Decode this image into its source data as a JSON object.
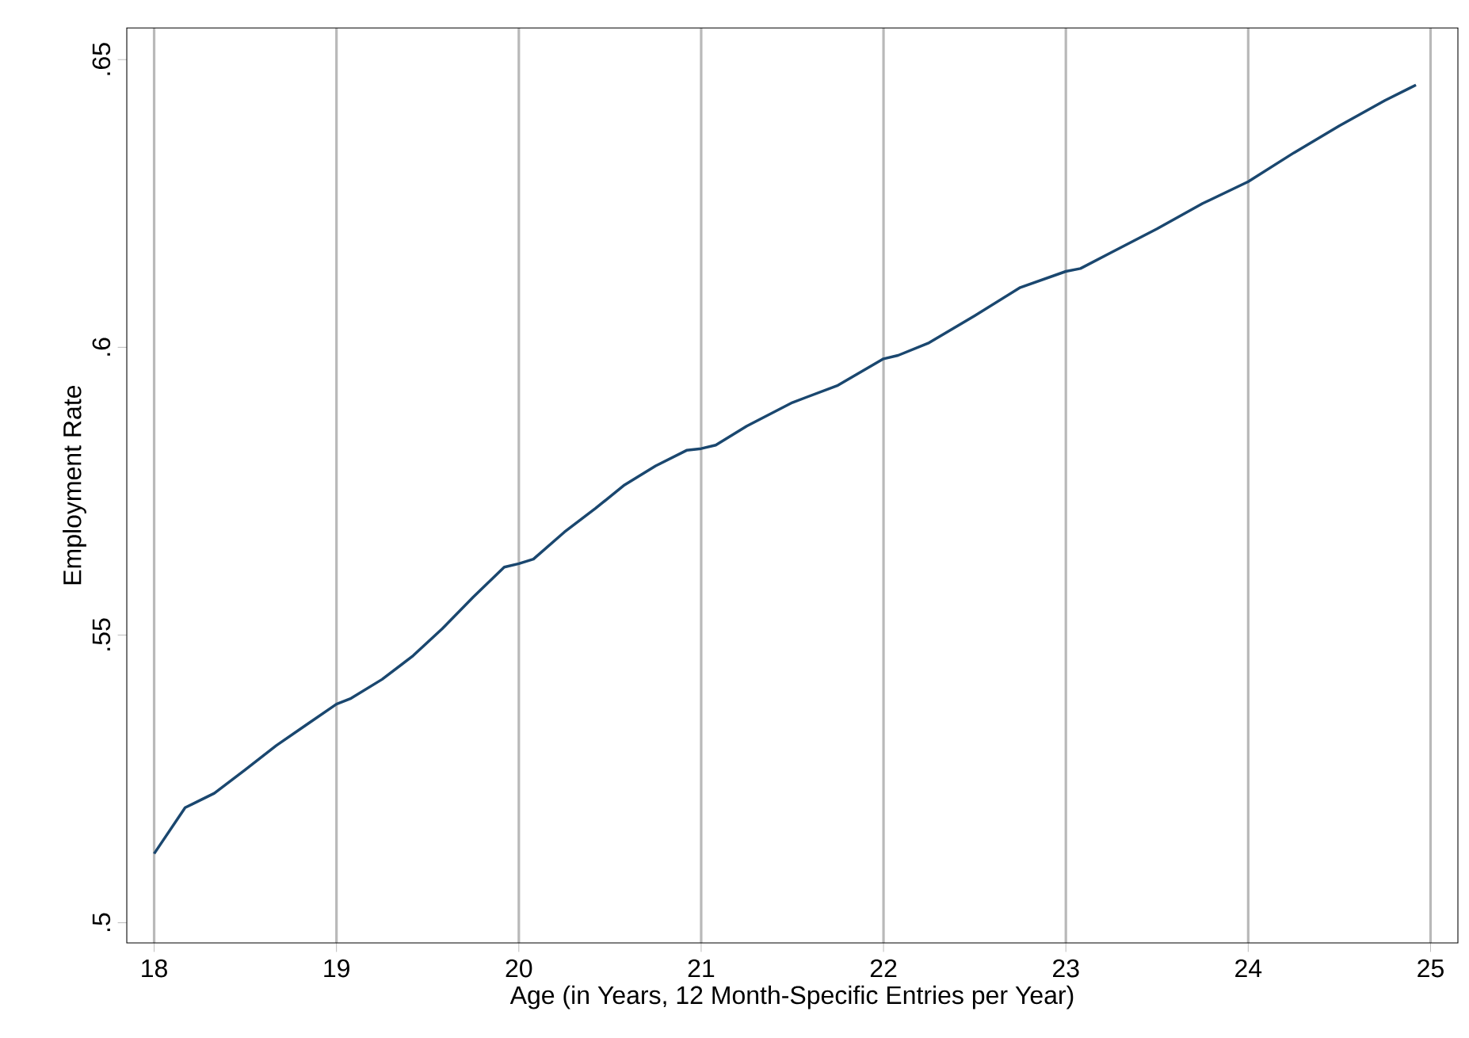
{
  "chart_data": {
    "type": "line",
    "xlabel": "Age (in Years, 12 Month-Specific Entries per Year)",
    "ylabel": "Employment Rate",
    "x": [
      18.0,
      18.17,
      18.33,
      18.5,
      18.67,
      18.83,
      19.0,
      19.08,
      19.25,
      19.42,
      19.58,
      19.75,
      19.92,
      20.0,
      20.08,
      20.25,
      20.42,
      20.58,
      20.75,
      20.92,
      21.0,
      21.08,
      21.25,
      21.5,
      21.75,
      22.0,
      22.08,
      22.25,
      22.5,
      22.75,
      23.0,
      23.08,
      23.25,
      23.5,
      23.75,
      24.0,
      24.25,
      24.5,
      24.75,
      24.92
    ],
    "series": [
      {
        "color": "#1a476f",
        "values": [
          0.512,
          0.52,
          0.5225,
          0.5266,
          0.5308,
          0.5343,
          0.538,
          0.539,
          0.5423,
          0.5464,
          0.5511,
          0.5566,
          0.5618,
          0.5624,
          0.5632,
          0.5679,
          0.572,
          0.5761,
          0.5794,
          0.5821,
          0.5824,
          0.583,
          0.5863,
          0.5904,
          0.5934,
          0.598,
          0.5986,
          0.6008,
          0.6055,
          0.6104,
          0.6132,
          0.6137,
          0.6165,
          0.6206,
          0.625,
          0.6288,
          0.6338,
          0.6385,
          0.6429,
          0.6456
        ]
      }
    ],
    "xlim": [
      17.85,
      25.15
    ],
    "ylim": [
      0.4965,
      0.6555
    ],
    "xticks": [
      18,
      19,
      20,
      21,
      22,
      23,
      24,
      25
    ],
    "yticks": [
      {
        "value": 0.5,
        "label": ".5"
      },
      {
        "value": 0.55,
        "label": ".55"
      },
      {
        "value": 0.6,
        "label": ".6"
      },
      {
        "value": 0.65,
        "label": ".65"
      }
    ],
    "grid": "x",
    "marker": "none",
    "line_style": "solid"
  }
}
